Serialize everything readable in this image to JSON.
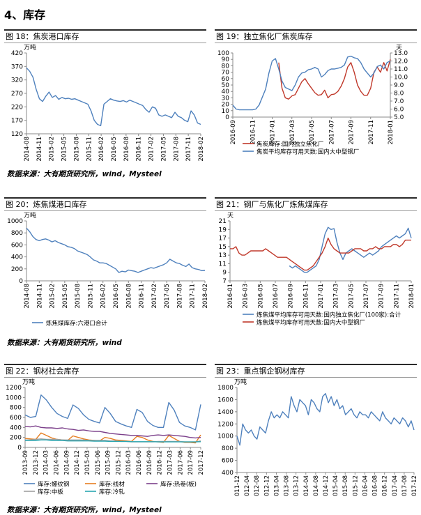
{
  "section_title": "4、库存",
  "panels": [
    {
      "figure": "图 18：焦炭港口库存",
      "source": "数据来源：大有期货研究所，wind，Mysteel"
    },
    {
      "figure": "图 19：独立焦化厂焦炭库存",
      "source": ""
    },
    {
      "figure": "图 20：炼焦煤港口库存",
      "source": "数据来源：大有期货研究所，wind"
    },
    {
      "figure": "图 21：钢厂与焦化厂炼焦煤库存",
      "source": ""
    },
    {
      "figure": "图 22：钢材社会库存",
      "source": "数据来源：大有期货研究所，wind，Mysteel"
    },
    {
      "figure": "图 23：重点钢企钢材库存",
      "source": ""
    }
  ],
  "colors": {
    "blue": "#4f81bd",
    "red": "#c0392b",
    "orange": "#e67e22",
    "gray": "#a0a0a0",
    "purple": "#7b3f8a",
    "teal": "#2aa6b0"
  },
  "chart_data": [
    {
      "type": "line",
      "unit": "万吨",
      "ylim": [
        120,
        420
      ],
      "yticks": [
        120,
        170,
        220,
        270,
        320,
        370,
        420
      ],
      "x_labels": [
        "2014-08",
        "2014-11",
        "2015-02",
        "2015-05",
        "2015-08",
        "2015-11",
        "2016-02",
        "2016-05",
        "2016-08",
        "2016-11",
        "2017-02",
        "2017-05",
        "2017-08",
        "2017-11",
        "2018-02"
      ],
      "series": [
        {
          "name": "",
          "color": "#4f81bd",
          "values": [
            365,
            352,
            330,
            285,
            250,
            240,
            260,
            275,
            255,
            262,
            248,
            255,
            250,
            252,
            248,
            250,
            245,
            240,
            235,
            230,
            205,
            170,
            155,
            150,
            230,
            240,
            250,
            245,
            242,
            240,
            243,
            238,
            245,
            240,
            235,
            230,
            225,
            210,
            200,
            220,
            215,
            190,
            185,
            190,
            185,
            180,
            200,
            185,
            180,
            170,
            165,
            205,
            190,
            160,
            155
          ]
        }
      ]
    },
    {
      "type": "line",
      "ylim": [
        0,
        100
      ],
      "yticks": [
        0,
        10,
        20,
        30,
        40,
        50,
        60,
        70,
        80,
        90,
        100
      ],
      "ylim2": [
        5.0,
        13.0
      ],
      "yticks2": [
        "5.0",
        "6.0",
        "7.0",
        "8.0",
        "9.0",
        "10.0",
        "11.0",
        "12.0",
        "13.0"
      ],
      "unit2": "天",
      "x_labels": [
        "2016-09",
        "2016-11",
        "2017-01",
        "2017-03",
        "2017-05",
        "2017-07",
        "2017-09",
        "2017-11",
        "2018-01"
      ],
      "legend": [
        "焦炭库存:国内独立焦化厂",
        "焦炭平均库存可用天数:国内大中型钢厂"
      ],
      "series": [
        {
          "name": "焦炭库存:国内独立焦化厂",
          "color": "#c0392b",
          "axis": "left",
          "values": [
            null,
            null,
            null,
            null,
            null,
            null,
            null,
            null,
            null,
            null,
            null,
            null,
            null,
            null,
            85,
            45,
            30,
            28,
            33,
            35,
            45,
            55,
            60,
            52,
            45,
            38,
            34,
            35,
            42,
            30,
            35,
            36,
            40,
            48,
            60,
            78,
            85,
            70,
            50,
            40,
            34,
            34,
            45,
            70,
            78,
            70,
            85,
            72,
            90
          ]
        },
        {
          "name": "焦炭平均库存可用天数:国内大中型钢厂",
          "color": "#4f81bd",
          "axis": "right",
          "values": [
            6.5,
            6.0,
            5.9,
            5.9,
            5.9,
            5.9,
            5.9,
            6.0,
            6.5,
            7.5,
            8.5,
            10.5,
            12.0,
            12.3,
            11.0,
            9.5,
            8.7,
            8.5,
            8.3,
            9.0,
            10.0,
            10.5,
            10.6,
            10.9,
            11.0,
            11.2,
            11.0,
            10.0,
            10.3,
            10.8,
            11.0,
            11.0,
            11.1,
            11.2,
            11.5,
            12.5,
            12.6,
            12.4,
            12.3,
            11.8,
            11.0,
            10.5,
            10.0,
            10.5,
            11.3,
            11.5,
            11.0,
            11.8,
            12.0
          ]
        }
      ]
    },
    {
      "type": "line",
      "unit": "万吨",
      "ylim": [
        0,
        1000
      ],
      "yticks": [
        0,
        200,
        400,
        600,
        800,
        1000
      ],
      "x_labels": [
        "2014-08",
        "2014-11",
        "2015-02",
        "2015-05",
        "2015-08",
        "2015-11",
        "2016-02",
        "2016-05",
        "2016-08",
        "2016-11",
        "2017-02",
        "2017-05",
        "2017-08",
        "2017-11",
        "2018-02"
      ],
      "legend": [
        "炼焦煤库存:六港口合计"
      ],
      "series": [
        {
          "name": "炼焦煤库存:六港口合计",
          "color": "#4f81bd",
          "values": [
            880,
            820,
            740,
            690,
            670,
            690,
            700,
            680,
            650,
            670,
            640,
            620,
            600,
            570,
            560,
            540,
            500,
            480,
            460,
            440,
            400,
            350,
            330,
            300,
            300,
            290,
            260,
            230,
            200,
            140,
            160,
            150,
            180,
            170,
            160,
            140,
            160,
            180,
            200,
            220,
            210,
            230,
            250,
            270,
            300,
            360,
            330,
            300,
            290,
            260,
            240,
            280,
            220,
            200,
            190,
            170,
            175
          ]
        }
      ]
    },
    {
      "type": "line",
      "unit": "天",
      "ylim": [
        7,
        21
      ],
      "yticks": [
        7,
        9,
        11,
        13,
        15,
        17,
        19,
        21
      ],
      "x_labels": [
        "2016-01",
        "2016-03",
        "2016-05",
        "2016-07",
        "2016-09",
        "2016-11",
        "2017-01",
        "2017-03",
        "2017-05",
        "2017-07",
        "2017-09",
        "2017-11",
        "2018-01"
      ],
      "legend": [
        "炼焦煤平均库存可用天数:国内独立焦化厂(100家):合计",
        "炼焦煤平均库存可用天数:国内大中型钢厂"
      ],
      "series": [
        {
          "name": "炼焦煤平均库存可用天数:国内独立焦化厂(100家):合计",
          "color": "#4f81bd",
          "values": [
            null,
            null,
            null,
            null,
            null,
            null,
            null,
            null,
            null,
            null,
            null,
            null,
            null,
            null,
            null,
            null,
            null,
            null,
            null,
            null,
            10.5,
            10.0,
            10.5,
            10.0,
            9.5,
            9.0,
            9.0,
            9.5,
            10.0,
            10.5,
            12.0,
            15.0,
            18.0,
            19.5,
            19.0,
            19.2,
            16.0,
            13.5,
            12.0,
            13.5,
            14.0,
            14.5,
            14.0,
            13.5,
            13.0,
            12.5,
            13.0,
            13.5,
            13.0,
            13.5,
            14.0,
            15.0,
            15.5,
            16.0,
            16.5,
            17.0,
            17.5,
            17.0,
            17.5,
            18.0,
            19.3,
            17.0
          ]
        },
        {
          "name": "炼焦煤平均库存可用天数:国内大中型钢厂",
          "color": "#c0392b",
          "values": [
            14.5,
            14.5,
            15.0,
            13.5,
            13.0,
            13.0,
            13.5,
            14.0,
            14.0,
            14.0,
            14.0,
            14.0,
            14.5,
            14.0,
            13.5,
            13.0,
            12.5,
            12.5,
            12.5,
            12.5,
            12.0,
            11.5,
            11.0,
            10.5,
            10.0,
            9.5,
            9.5,
            10.0,
            10.5,
            11.5,
            12.5,
            13.5,
            15.0,
            17.0,
            15.5,
            14.5,
            14.0,
            13.5,
            13.5,
            13.5,
            13.5,
            14.0,
            14.5,
            14.5,
            14.5,
            14.0,
            14.0,
            14.5,
            14.5,
            15.0,
            14.5,
            14.5,
            15.0,
            15.0,
            15.0,
            15.5,
            15.5,
            15.0,
            15.5,
            16.5,
            16.5,
            16.5
          ]
        }
      ]
    },
    {
      "type": "line",
      "unit": "万吨",
      "ylim": [
        0,
        1200
      ],
      "yticks": [
        0,
        200,
        400,
        600,
        800,
        1000,
        1200
      ],
      "x_labels": [
        "2013-09",
        "2013-12",
        "2014-03",
        "2014-06",
        "2014-09",
        "2014-12",
        "2015-03",
        "2015-06",
        "2015-09",
        "2015-12",
        "2016-03",
        "2016-06",
        "2016-09",
        "2016-12",
        "2017-03",
        "2017-06",
        "2017-09",
        "2017-12"
      ],
      "legend": [
        "库存:螺纹钢",
        "库存:线材",
        "库存:热卷(板)",
        "库存:中板",
        "库存:冷轧"
      ],
      "series": [
        {
          "name": "库存:螺纹钢",
          "color": "#4f81bd",
          "values": [
            650,
            600,
            620,
            1050,
            950,
            800,
            680,
            620,
            580,
            850,
            780,
            650,
            560,
            520,
            490,
            800,
            680,
            520,
            470,
            430,
            400,
            760,
            700,
            520,
            440,
            400,
            400,
            900,
            750,
            500,
            430,
            400,
            350,
            860
          ]
        },
        {
          "name": "库存:线材",
          "color": "#e67e22",
          "values": [
            180,
            170,
            160,
            290,
            240,
            190,
            160,
            150,
            140,
            230,
            200,
            170,
            150,
            140,
            130,
            200,
            180,
            150,
            140,
            130,
            120,
            220,
            200,
            150,
            120,
            110,
            100,
            240,
            180,
            120,
            100,
            100,
            90,
            250
          ]
        },
        {
          "name": "库存:热卷(板)",
          "color": "#7b3f8a",
          "values": [
            420,
            410,
            430,
            400,
            390,
            390,
            380,
            390,
            370,
            360,
            340,
            350,
            330,
            320,
            320,
            300,
            280,
            270,
            260,
            250,
            240,
            240,
            230,
            220,
            240,
            250,
            240,
            250,
            240,
            230,
            220,
            200,
            190,
            200
          ]
        },
        {
          "name": "库存:中板",
          "color": "#a0a0a0",
          "values": [
            150,
            150,
            160,
            170,
            160,
            160,
            160,
            150,
            150,
            150,
            150,
            150,
            140,
            140,
            140,
            140,
            130,
            130,
            120,
            120,
            110,
            110,
            110,
            110,
            110,
            120,
            120,
            120,
            120,
            120,
            110,
            110,
            110,
            130
          ]
        },
        {
          "name": "库存:冷轧",
          "color": "#2aa6b0",
          "values": [
            140,
            140,
            140,
            150,
            150,
            140,
            140,
            140,
            130,
            130,
            130,
            130,
            130,
            125,
            125,
            125,
            120,
            120,
            120,
            120,
            115,
            115,
            115,
            115,
            115,
            110,
            110,
            110,
            110,
            110,
            110,
            110,
            110,
            115
          ]
        }
      ]
    },
    {
      "type": "line",
      "unit": "万吨",
      "ylim": [
        400,
        1800
      ],
      "yticks": [
        400,
        600,
        800,
        1000,
        1200,
        1400,
        1600,
        1800
      ],
      "x_labels": [
        "2011-12",
        "2012-04",
        "2012-08",
        "2012-12",
        "2013-04",
        "2013-08",
        "2013-12",
        "2014-04",
        "2014-08",
        "2014-12",
        "2015-04",
        "2015-08",
        "2015-12",
        "2016-04",
        "2016-08",
        "2016-12",
        "2017-04",
        "2017-08",
        "2017-12"
      ],
      "series": [
        {
          "name": "",
          "color": "#4f81bd",
          "values": [
            1000,
            850,
            1200,
            1100,
            1050,
            1100,
            1000,
            950,
            1150,
            1100,
            1050,
            1250,
            1400,
            1300,
            1350,
            1300,
            1400,
            1350,
            1300,
            1650,
            1500,
            1400,
            1600,
            1550,
            1500,
            1350,
            1600,
            1550,
            1450,
            1400,
            1650,
            1700,
            1550,
            1650,
            1500,
            1600,
            1450,
            1500,
            1350,
            1400,
            1450,
            1350,
            1300,
            1400,
            1350,
            1350,
            1300,
            1400,
            1350,
            1300,
            1250,
            1400,
            1300,
            1250,
            1200,
            1300,
            1250,
            1200,
            1300,
            1250,
            1150,
            1250,
            1100
          ]
        }
      ]
    }
  ]
}
